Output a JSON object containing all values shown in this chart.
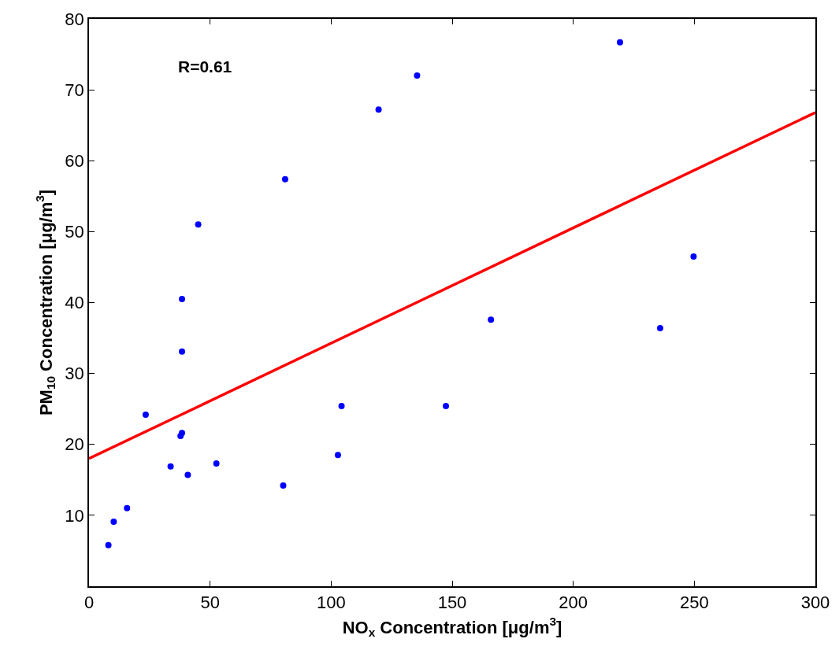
{
  "chart_data": {
    "type": "scatter",
    "xlabel": "NO$_{x}$ Concentration [μg/m$^{3}$]",
    "ylabel": "PM$_{10}$ Concentration [μg/m$^{3}$]",
    "annotations": [
      "R=0.61"
    ],
    "xlim": [
      0,
      300
    ],
    "xticks": [
      0,
      50,
      100,
      150,
      200,
      250,
      300
    ],
    "ylim": [
      0,
      80
    ],
    "yticks": [
      {
        "value": 0,
        "label": null
      },
      10,
      20,
      30,
      40,
      50,
      60,
      70,
      80
    ],
    "marker": "circle",
    "series": [
      {
        "color": "#0000ff",
        "x": [
          8.0,
          10.2,
          15.7,
          23.4,
          33.7,
          37.8,
          38.4,
          38.4,
          38.4,
          40.8,
          45.1,
          52.6,
          80.2,
          81.0,
          102.8,
          104.3,
          119.6,
          135.5,
          147.4,
          166.0,
          219.3,
          235.9,
          249.7
        ],
        "values": [
          5.8,
          9.1,
          11.0,
          24.2,
          16.9,
          21.2,
          21.6,
          33.1,
          40.5,
          15.7,
          51.0,
          17.3,
          14.2,
          57.4,
          18.5,
          25.4,
          67.2,
          72.0,
          25.4,
          37.6,
          76.7,
          36.4,
          46.5
        ]
      },
      {
        "type": "line",
        "color": "#ff0000",
        "line_style": "solid",
        "marker": "none",
        "x": [
          0,
          300
        ],
        "values": [
          18.0,
          66.8
        ]
      }
    ]
  }
}
